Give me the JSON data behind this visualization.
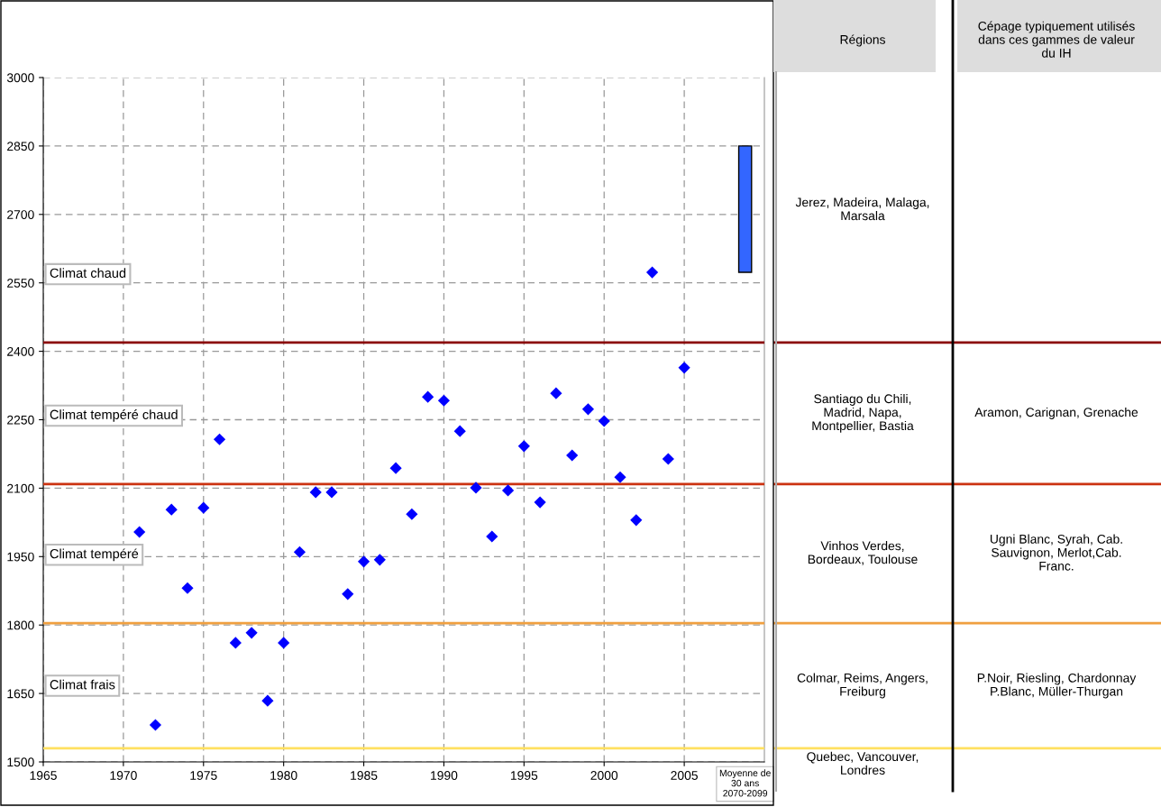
{
  "chart_data": [
    {
      "type": "scatter",
      "marker": "diamond",
      "grid": true,
      "xlim": [
        1965,
        2010
      ],
      "xticks": [
        1965,
        1970,
        1975,
        1980,
        1985,
        1990,
        1995,
        2000,
        2005
      ],
      "ylim": [
        1500,
        3000
      ],
      "yticks": [
        1500,
        1650,
        1800,
        1950,
        2100,
        2250,
        2400,
        2550,
        2700,
        2850,
        3000
      ],
      "series": [
        {
          "color": "#0000ff",
          "x": [
            1971,
            1972,
            1973,
            1974,
            1975,
            1976,
            1977,
            1978,
            1979,
            1980,
            1981,
            1982,
            1983,
            1984,
            1985,
            1986,
            1987,
            1988,
            1989,
            1990,
            1991,
            1992,
            1993,
            1994,
            1995,
            1996,
            1997,
            1998,
            1999,
            2000,
            2001,
            2002,
            2003,
            2004,
            2005
          ],
          "values": [
            2004,
            1581,
            2053,
            1881,
            2057,
            2207,
            1761,
            1783,
            1634,
            1761,
            1960,
            2091,
            2091,
            1868,
            1939,
            1943,
            2144,
            2043,
            2300,
            2292,
            2225,
            2101,
            1994,
            2095,
            2192,
            2069,
            2308,
            2172,
            2273,
            2247,
            2124,
            2030,
            2573,
            2164,
            2364
          ]
        },
        {
          "type": "bar",
          "color": "#3366ff",
          "x": [
            2008.8
          ],
          "base": [
            2573
          ],
          "values": [
            277
          ]
        }
      ],
      "ref_lines": [
        {
          "axis": "y",
          "value": 2419,
          "color": "#8b0a0a"
        },
        {
          "axis": "y",
          "value": 2109,
          "color": "#cc3311"
        },
        {
          "axis": "y",
          "value": 1804,
          "color": "#f0a040"
        },
        {
          "axis": "y",
          "value": 1530,
          "color": "#ffe060"
        }
      ],
      "annotations": [
        "Climat chaud",
        "Climat tempéré chaud",
        "Climat tempéré",
        "Climat frais",
        "Moyenne de\n30 ans\n2070-2099"
      ]
    },
    {
      "type": "other",
      "annotations": [
        "Régions",
        "Cépage typiquement utilisés\ndans ces gammes de valeur\ndu IH",
        "Jerez, Madeira, Malaga,\nMarsala",
        "Santiago du Chili,\nMadrid, Napa,\nMontpellier, Bastia",
        "Aramon, Carignan, Grenache",
        "Vinhos Verdes,\nBordeaux, Toulouse",
        "Ugni Blanc, Syrah, Cab.\nSauvignon, Merlot,Cab.\nFranc.",
        "Colmar, Reims, Angers,\nFreiburg",
        "P.Noir, Riesling, Chardonnay\nP.Blanc, Müller-Thurgan",
        "Quebec, Vancouver,\nLondres"
      ]
    }
  ]
}
